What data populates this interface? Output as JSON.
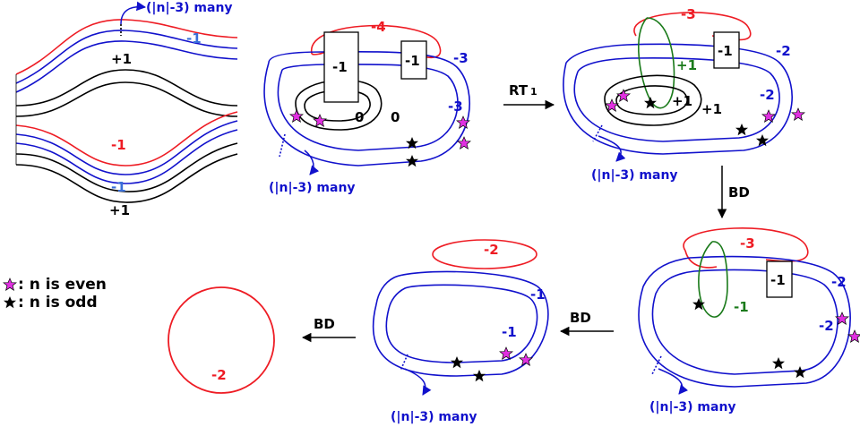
{
  "colors": {
    "red": "#ee1c24",
    "blue": "#1111cc",
    "lightblue": "#3a6fd8",
    "green": "#1a7a1a",
    "black": "#000000",
    "magenta": "#e030e0"
  },
  "labels": {
    "many": "(|n|-3) many",
    "rt1": "RT",
    "rt1_sub": "1",
    "bd": "BD",
    "fig0": {
      "minus1_top": "-1",
      "plus1_top": "+1",
      "minus1_red": "-1",
      "minus1_bottom": "-1",
      "plus1_bottom": "+1"
    },
    "fig1": {
      "red": "-4",
      "box1": "-1",
      "box2": "-1",
      "outer": "-3",
      "inner": "-3",
      "zero1": "0",
      "zero2": "0"
    },
    "fig2": {
      "red": "-3",
      "box": "-1",
      "outer": "-2",
      "inner": "-2",
      "green": "+1",
      "black1": "+1",
      "black2": "+1"
    },
    "fig3": {
      "red": "-3",
      "box": "-1",
      "outer": "-2",
      "inner": "-2",
      "green": "-1"
    },
    "fig4": {
      "red": "-2",
      "outer": "-1",
      "inner": "-1"
    },
    "fig5": {
      "red": "-2"
    }
  },
  "legend": {
    "even": ": n is even",
    "odd": ": n is odd"
  },
  "icons": [
    "magenta-star-icon",
    "black-star-icon",
    "arrow-icon"
  ]
}
